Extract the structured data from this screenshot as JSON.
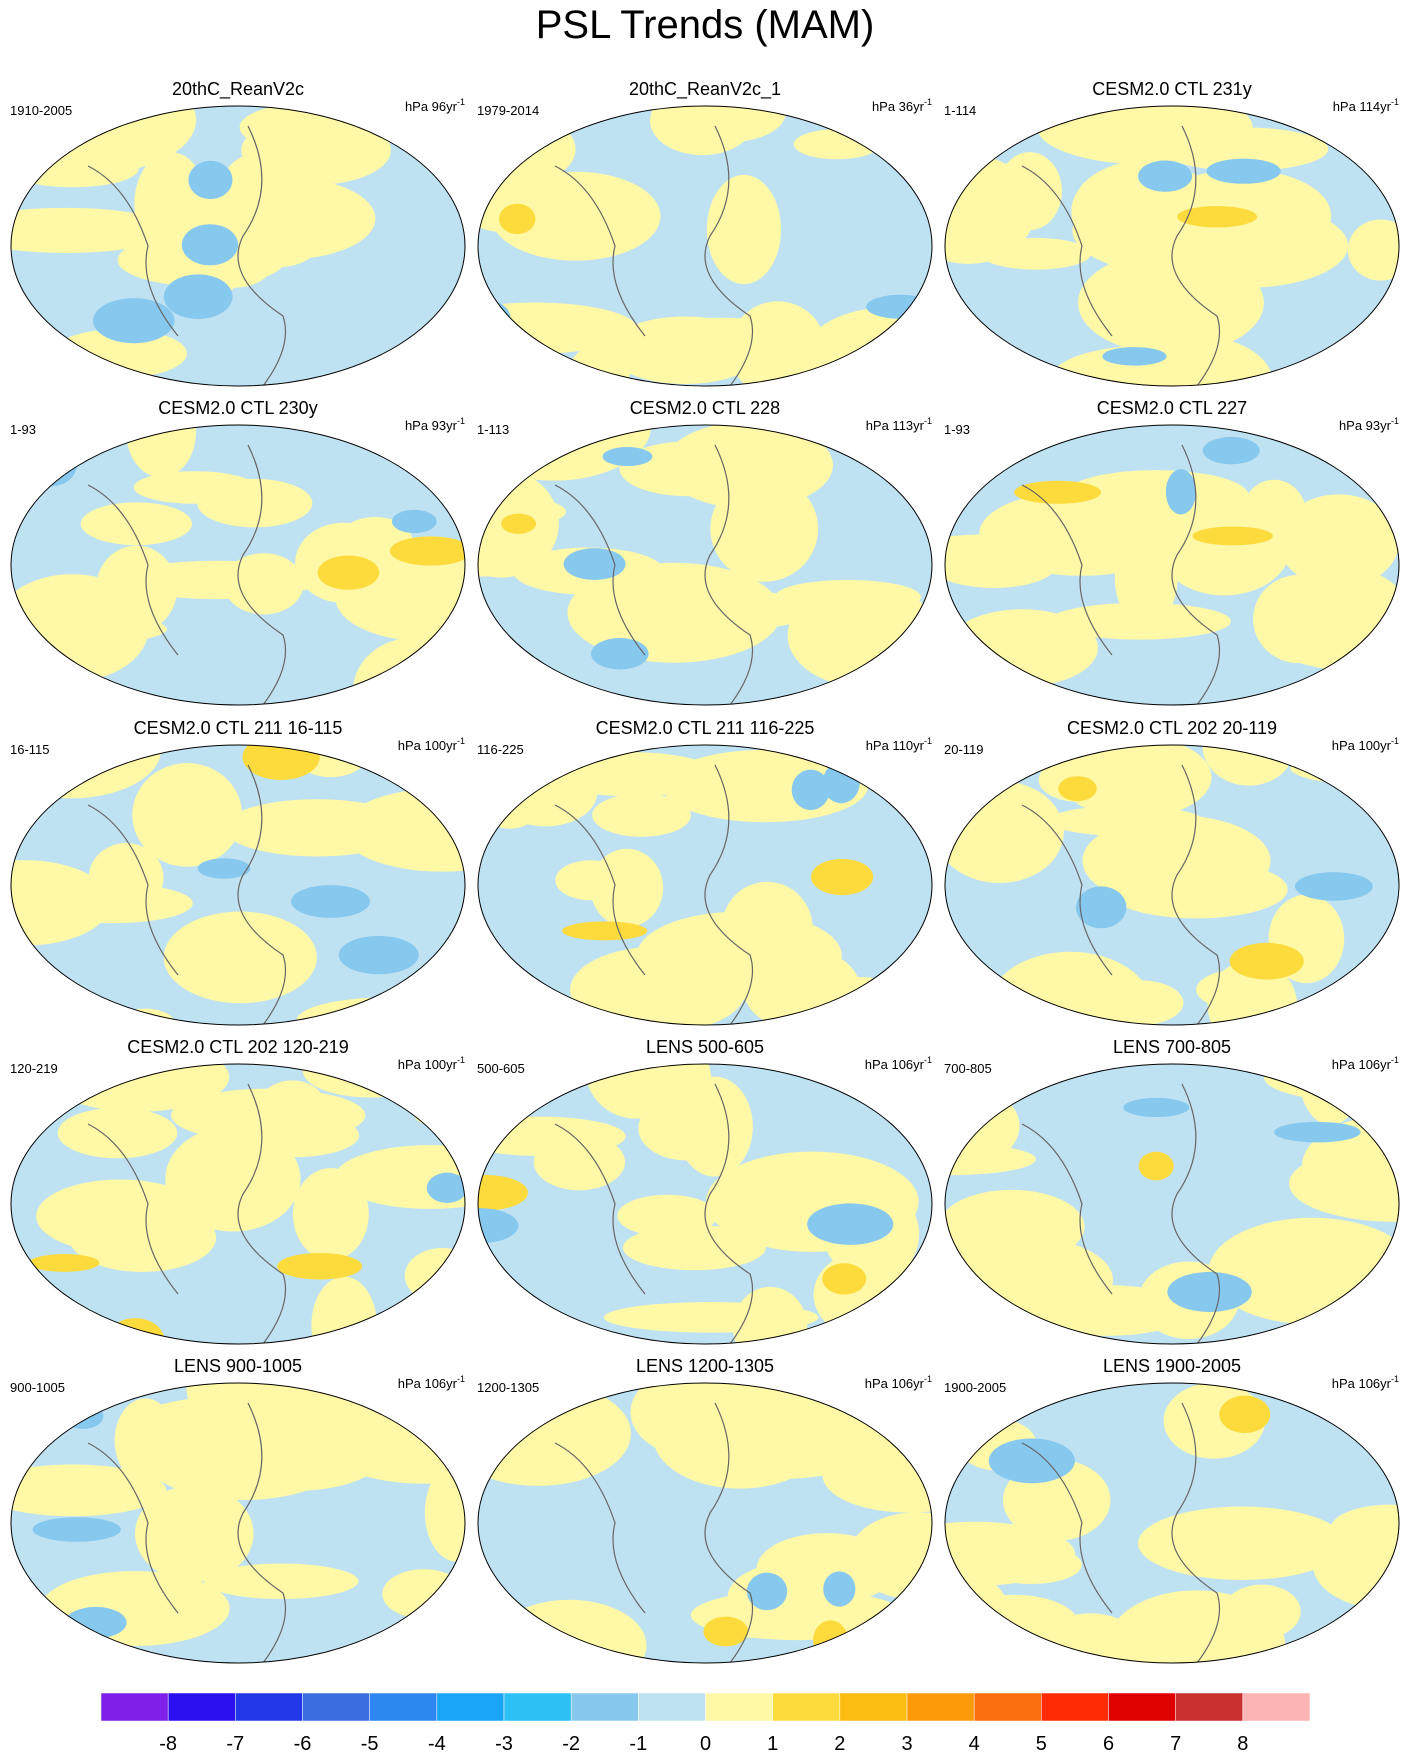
{
  "title": "PSL Trends (MAM)",
  "panels": [
    {
      "title": "20thC_ReanV2c",
      "period": "1910-2005",
      "units": "hPa 96yr",
      "units_exp": "-1"
    },
    {
      "title": "20thC_ReanV2c_1",
      "period": "1979-2014",
      "units": "hPa 36yr",
      "units_exp": "-1"
    },
    {
      "title": "CESM2.0 CTL 231y",
      "period": "1-114",
      "units": "hPa 114yr",
      "units_exp": "-1"
    },
    {
      "title": "CESM2.0 CTL 230y",
      "period": "1-93",
      "units": "hPa 93yr",
      "units_exp": "-1"
    },
    {
      "title": "CESM2.0 CTL 228",
      "period": "1-113",
      "units": "hPa 113yr",
      "units_exp": "-1"
    },
    {
      "title": "CESM2.0 CTL 227",
      "period": "1-93",
      "units": "hPa 93yr",
      "units_exp": "-1"
    },
    {
      "title": "CESM2.0 CTL 211 16-115",
      "period": "16-115",
      "units": "hPa 100yr",
      "units_exp": "-1"
    },
    {
      "title": "CESM2.0 CTL 211 116-225",
      "period": "116-225",
      "units": "hPa 110yr",
      "units_exp": "-1"
    },
    {
      "title": "CESM2.0 CTL 202 20-119",
      "period": "20-119",
      "units": "hPa 100yr",
      "units_exp": "-1"
    },
    {
      "title": "CESM2.0 CTL 202 120-219",
      "period": "120-219",
      "units": "hPa 100yr",
      "units_exp": "-1"
    },
    {
      "title": "LENS 500-605",
      "period": "500-605",
      "units": "hPa 106yr",
      "units_exp": "-1"
    },
    {
      "title": "LENS 700-805",
      "period": "700-805",
      "units": "hPa 106yr",
      "units_exp": "-1"
    },
    {
      "title": "LENS 900-1005",
      "period": "900-1005",
      "units": "hPa 106yr",
      "units_exp": "-1"
    },
    {
      "title": "LENS 1200-1305",
      "period": "1200-1305",
      "units": "hPa 106yr",
      "units_exp": "-1"
    },
    {
      "title": "LENS 1900-2005",
      "period": "1900-2005",
      "units": "hPa 106yr",
      "units_exp": "-1"
    }
  ],
  "colorbar": {
    "levels": [
      -8,
      -7,
      -6,
      -5,
      -4,
      -3,
      -2,
      -1,
      0,
      1,
      2,
      3,
      4,
      5,
      6,
      7,
      8
    ],
    "colors": [
      "#7f20e8",
      "#2a0ff0",
      "#2238e8",
      "#3a6ee0",
      "#2e86f0",
      "#19a5f5",
      "#2cc0f5",
      "#87c8ef",
      "#bfe2f2",
      "#fff8a6",
      "#fddb3d",
      "#fcbc12",
      "#fd9a0a",
      "#fb6e0e",
      "#fe2b05",
      "#df0000",
      "#c92f2f",
      "#fdb4b4"
    ]
  }
}
